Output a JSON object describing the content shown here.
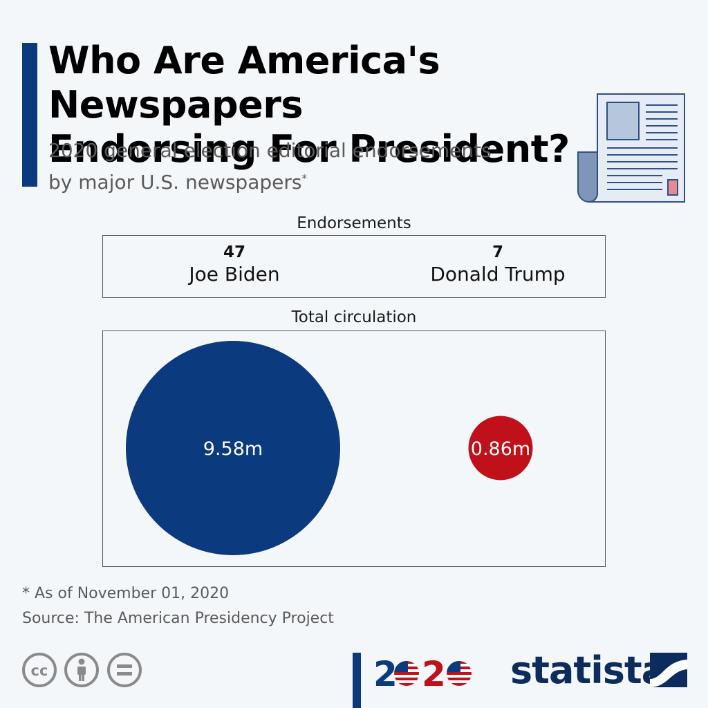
{
  "header": {
    "title_line1": "Who Are America's Newspapers",
    "title_line2": "Endorsing For President?",
    "subtitle_line1": "2020 general election editorial endorsements",
    "subtitle_line2": "by major U.S. newspapers",
    "subtitle_mark": "*"
  },
  "chart_data": [
    {
      "type": "table",
      "title": "Endorsements",
      "categories": [
        "Joe Biden",
        "Donald Trump"
      ],
      "values": [
        47,
        7
      ]
    },
    {
      "type": "scatter",
      "title": "Total circulation",
      "categories": [
        "Joe Biden",
        "Donald Trump"
      ],
      "values": [
        9.58,
        0.86
      ],
      "labels": [
        "9.58m",
        "0.86m"
      ],
      "colors": [
        "#0b3a7e",
        "#c0101a"
      ]
    }
  ],
  "footer": {
    "note": "* As of November 01, 2020",
    "source": "Source: The American Presidency Project",
    "year_prefix": "2",
    "year_mid": "2",
    "brand": "statista"
  },
  "colors": {
    "accent": "#0b3a7e",
    "red": "#c0101a",
    "brand": "#0b2c5c"
  },
  "icons": [
    "newspaper-icon",
    "cc-icon",
    "by-icon",
    "nd-icon",
    "statista-logo-icon"
  ]
}
